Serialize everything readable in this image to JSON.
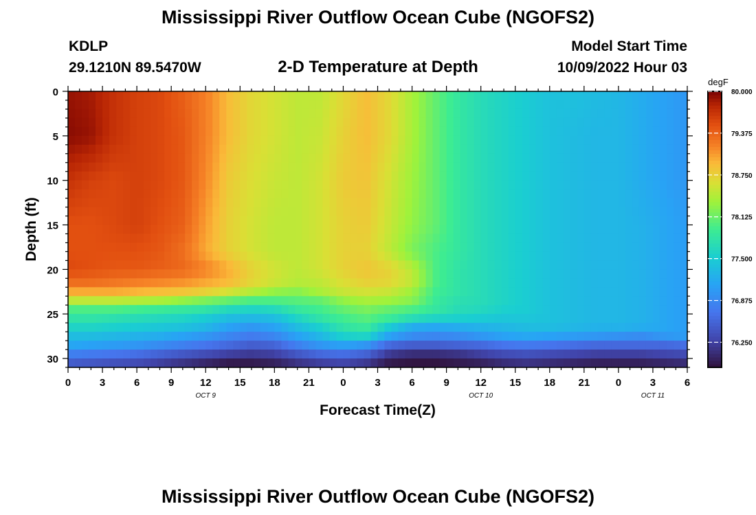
{
  "title": "Mississippi River Outflow Ocean Cube (NGOFS2)",
  "footer_title": "Mississippi River Outflow Ocean Cube (NGOFS2)",
  "station": {
    "id": "KDLP",
    "coords": "29.1210N  89.5470W"
  },
  "subtitle": "2-D Temperature at Depth",
  "model": {
    "label": "Model Start Time",
    "time": "10/09/2022 Hour 03"
  },
  "chart_data": {
    "type": "heatmap",
    "title": "2-D Temperature at Depth",
    "xlabel": "Forecast Time(Z)",
    "ylabel": "Depth (ft)",
    "x_range_hours_from_oct9_00z": [
      0,
      54
    ],
    "ylim": [
      0,
      31
    ],
    "y_inverted": true,
    "x_tick_labels": [
      "0",
      "3",
      "6",
      "9",
      "12",
      "15",
      "18",
      "21",
      "0",
      "3",
      "6",
      "9",
      "12",
      "15",
      "18",
      "21",
      "0",
      "3",
      "6"
    ],
    "y_ticks": [
      0,
      5,
      10,
      15,
      20,
      25,
      30
    ],
    "date_labels": [
      {
        "text": "OCT 9",
        "hour": 12
      },
      {
        "text": "OCT 10",
        "hour": 36
      },
      {
        "text": "OCT 11",
        "hour": 51
      }
    ],
    "colorbar": {
      "unit": "degF",
      "min": 75.875,
      "max": 80.0,
      "tick_values": [
        80.0,
        79.375,
        78.75,
        78.125,
        77.5,
        76.875,
        76.25
      ],
      "tick_labels": [
        "80.000",
        "79.375",
        "78.750",
        "78.125",
        "77.500",
        "76.875",
        "76.250"
      ]
    },
    "depth_levels_ft": [
      0,
      5,
      10,
      15,
      18,
      20,
      21.5,
      22.5,
      23.5,
      24.5,
      25.5,
      26.5,
      27.5,
      28.5,
      29.5,
      30.5,
      31
    ],
    "time_hours": [
      0,
      2,
      4,
      6,
      8,
      10,
      12,
      14,
      16,
      18,
      20,
      22,
      24,
      26,
      28,
      30,
      32,
      34,
      36,
      38,
      40,
      42,
      44,
      46,
      48,
      50,
      52,
      54
    ],
    "temperature_degF": [
      [
        79.9,
        79.85,
        79.7,
        79.6,
        79.55,
        79.4,
        79.2,
        78.9,
        78.7,
        78.6,
        78.5,
        78.5,
        78.7,
        78.9,
        78.7,
        78.4,
        78.1,
        77.85,
        77.7,
        77.6,
        77.5,
        77.4,
        77.4,
        77.35,
        77.3,
        77.2,
        77.1,
        77.0
      ],
      [
        79.95,
        79.9,
        79.7,
        79.6,
        79.55,
        79.45,
        79.2,
        78.9,
        78.7,
        78.6,
        78.5,
        78.55,
        78.75,
        78.9,
        78.7,
        78.4,
        78.1,
        77.85,
        77.7,
        77.6,
        77.5,
        77.4,
        77.35,
        77.3,
        77.3,
        77.2,
        77.1,
        77.0
      ],
      [
        79.7,
        79.6,
        79.55,
        79.6,
        79.55,
        79.45,
        79.15,
        78.8,
        78.65,
        78.55,
        78.5,
        78.6,
        78.8,
        78.85,
        78.6,
        78.35,
        78.1,
        77.85,
        77.7,
        77.6,
        77.5,
        77.4,
        77.35,
        77.3,
        77.3,
        77.2,
        77.1,
        77.0
      ],
      [
        79.5,
        79.5,
        79.55,
        79.6,
        79.5,
        79.4,
        79.05,
        78.75,
        78.6,
        78.5,
        78.5,
        78.6,
        78.75,
        78.8,
        78.55,
        78.3,
        78.1,
        77.85,
        77.7,
        77.6,
        77.5,
        77.4,
        77.35,
        77.3,
        77.3,
        77.25,
        77.15,
        77.05
      ],
      [
        79.5,
        79.5,
        79.5,
        79.5,
        79.45,
        79.3,
        79.0,
        78.75,
        78.6,
        78.5,
        78.5,
        78.6,
        78.75,
        78.75,
        78.5,
        78.2,
        78.0,
        77.85,
        77.7,
        77.6,
        77.5,
        77.4,
        77.35,
        77.3,
        77.3,
        77.25,
        77.15,
        77.05
      ],
      [
        79.55,
        79.5,
        79.45,
        79.45,
        79.4,
        79.35,
        79.2,
        79.0,
        78.75,
        78.6,
        78.5,
        78.6,
        78.75,
        78.85,
        78.75,
        78.5,
        78.0,
        77.8,
        77.7,
        77.6,
        77.5,
        77.4,
        77.35,
        77.3,
        77.3,
        77.25,
        77.15,
        77.05
      ],
      [
        79.3,
        79.3,
        79.25,
        79.2,
        79.15,
        79.1,
        79.0,
        78.9,
        78.7,
        78.55,
        78.45,
        78.5,
        78.65,
        78.75,
        78.7,
        78.5,
        78.0,
        77.8,
        77.7,
        77.6,
        77.5,
        77.4,
        77.35,
        77.3,
        77.3,
        77.25,
        77.15,
        77.05
      ],
      [
        79.0,
        79.0,
        79.0,
        78.95,
        78.9,
        78.85,
        78.75,
        78.6,
        78.45,
        78.3,
        78.25,
        78.4,
        78.55,
        78.6,
        78.55,
        78.35,
        77.95,
        77.8,
        77.7,
        77.6,
        77.5,
        77.4,
        77.35,
        77.3,
        77.3,
        77.25,
        77.15,
        77.05
      ],
      [
        78.5,
        78.5,
        78.5,
        78.45,
        78.4,
        78.3,
        78.2,
        78.1,
        78.0,
        78.0,
        78.05,
        78.1,
        78.3,
        78.4,
        78.35,
        78.25,
        77.9,
        77.75,
        77.7,
        77.6,
        77.5,
        77.4,
        77.35,
        77.3,
        77.3,
        77.25,
        77.15,
        77.05
      ],
      [
        78.0,
        78.0,
        78.0,
        77.95,
        77.9,
        77.85,
        77.8,
        77.65,
        77.6,
        77.65,
        77.85,
        77.95,
        78.1,
        78.2,
        78.1,
        78.0,
        77.85,
        77.7,
        77.65,
        77.55,
        77.5,
        77.4,
        77.35,
        77.3,
        77.3,
        77.25,
        77.15,
        77.05
      ],
      [
        77.8,
        77.8,
        77.75,
        77.7,
        77.65,
        77.6,
        77.5,
        77.35,
        77.3,
        77.35,
        77.6,
        77.8,
        77.95,
        78.05,
        77.9,
        77.7,
        77.6,
        77.55,
        77.5,
        77.45,
        77.45,
        77.4,
        77.35,
        77.3,
        77.3,
        77.25,
        77.15,
        77.05
      ],
      [
        77.6,
        77.6,
        77.55,
        77.5,
        77.45,
        77.4,
        77.3,
        77.1,
        77.0,
        77.1,
        77.35,
        77.55,
        77.8,
        77.9,
        77.5,
        77.2,
        77.15,
        77.2,
        77.25,
        77.3,
        77.35,
        77.35,
        77.3,
        77.25,
        77.25,
        77.2,
        77.15,
        77.05
      ],
      [
        77.35,
        77.35,
        77.3,
        77.25,
        77.2,
        77.1,
        77.0,
        76.85,
        76.75,
        76.85,
        77.1,
        77.3,
        77.55,
        77.6,
        77.1,
        76.9,
        76.85,
        76.9,
        77.0,
        77.1,
        77.15,
        77.1,
        77.05,
        77.0,
        76.95,
        76.9,
        77.0,
        77.05
      ],
      [
        77.15,
        77.1,
        77.05,
        77.0,
        76.9,
        76.8,
        76.7,
        76.6,
        76.5,
        76.55,
        76.8,
        77.0,
        77.1,
        77.0,
        76.6,
        76.5,
        76.5,
        76.55,
        76.6,
        76.7,
        76.75,
        76.7,
        76.65,
        76.6,
        76.6,
        76.6,
        76.6,
        76.65
      ],
      [
        76.8,
        76.75,
        76.7,
        76.65,
        76.55,
        76.45,
        76.35,
        76.25,
        76.2,
        76.25,
        76.45,
        76.6,
        76.65,
        76.55,
        76.2,
        76.1,
        76.1,
        76.15,
        76.25,
        76.35,
        76.4,
        76.35,
        76.3,
        76.25,
        76.25,
        76.25,
        76.3,
        76.35
      ],
      [
        76.5,
        76.45,
        76.4,
        76.35,
        76.25,
        76.15,
        76.05,
        75.95,
        75.95,
        76.0,
        76.15,
        76.25,
        76.3,
        76.2,
        75.95,
        75.9,
        75.9,
        75.95,
        76.0,
        76.1,
        76.15,
        76.1,
        76.05,
        76.0,
        76.0,
        76.0,
        76.05,
        76.1
      ],
      [
        76.4,
        76.35,
        76.3,
        76.25,
        76.15,
        76.05,
        75.95,
        75.9,
        75.9,
        75.95,
        76.05,
        76.15,
        76.2,
        76.1,
        75.9,
        75.88,
        75.88,
        75.9,
        75.95,
        76.0,
        76.05,
        76.0,
        75.98,
        75.95,
        75.95,
        75.95,
        76.0,
        76.05
      ]
    ]
  }
}
